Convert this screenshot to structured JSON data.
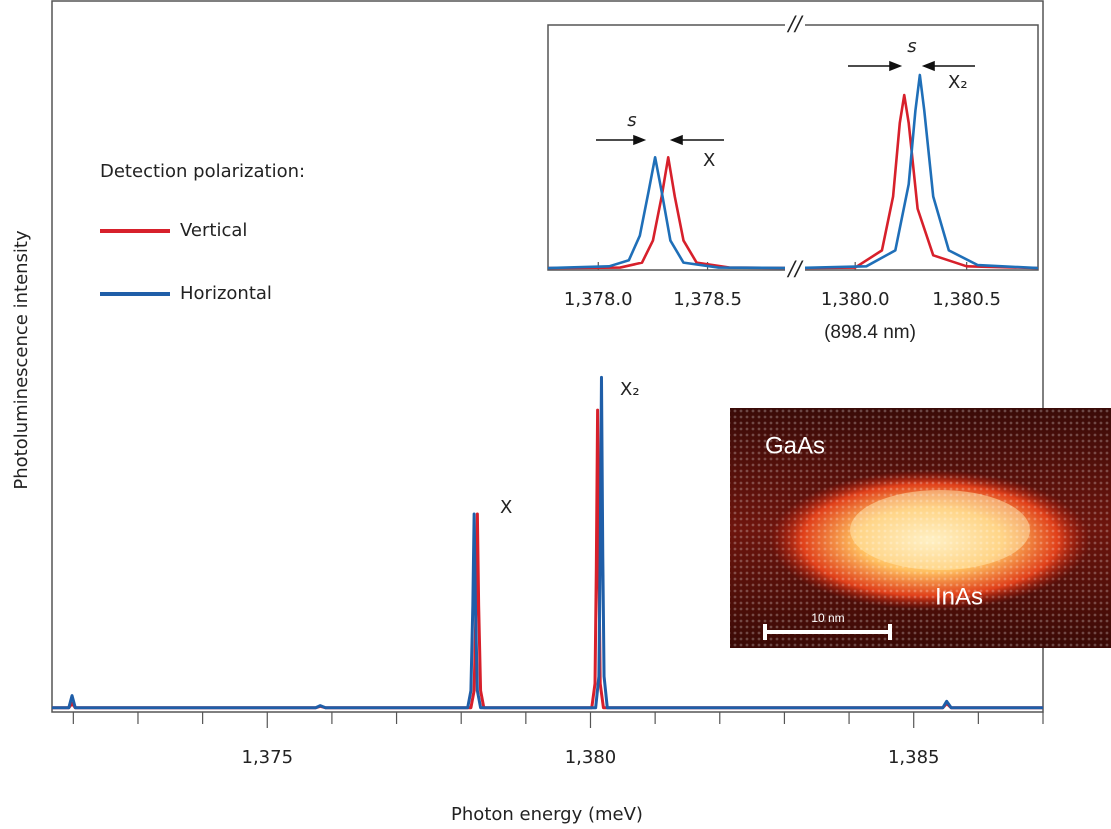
{
  "chart_data": [
    {
      "type": "line",
      "x_label": "Photon energy (meV)",
      "y_label": "Photoluminescence intensity",
      "xlim": [
        1371.67,
        1387.0
      ],
      "xticks": [
        {
          "value": 1372,
          "label": null
        },
        {
          "value": 1373,
          "label": null
        },
        {
          "value": 1374,
          "label": null
        },
        {
          "value": 1375,
          "label": "1,375"
        },
        {
          "value": 1376,
          "label": null
        },
        {
          "value": 1377,
          "label": null
        },
        {
          "value": 1378,
          "label": null
        },
        {
          "value": 1379,
          "label": null
        },
        {
          "value": 1380,
          "label": "1,380"
        },
        {
          "value": 1381,
          "label": null
        },
        {
          "value": 1382,
          "label": null
        },
        {
          "value": 1383,
          "label": null
        },
        {
          "value": 1384,
          "label": null
        },
        {
          "value": 1385,
          "label": "1,385"
        },
        {
          "value": 1386,
          "label": null
        },
        {
          "value": 1387,
          "label": null
        }
      ],
      "ylim": [
        0,
        100
      ],
      "legend": {
        "title": "Detection polarization:",
        "position": "upper left"
      },
      "annotations": [
        "X",
        "X₂"
      ],
      "series": [
        {
          "name": "Vertical",
          "color": "#d7202b",
          "x": [
            1371.67,
            1371.93,
            1371.98,
            1372.03,
            1375.75,
            1375.82,
            1375.9,
            1378.15,
            1378.2,
            1378.23,
            1378.25,
            1378.27,
            1378.3,
            1378.35,
            1380.02,
            1380.07,
            1380.09,
            1380.11,
            1380.13,
            1380.15,
            1380.2,
            1385.45,
            1385.51,
            1385.58,
            1387.0
          ],
          "values": [
            0.6,
            0.6,
            1.2,
            0.6,
            0.6,
            0.8,
            0.6,
            0.6,
            3,
            15,
            27.8,
            15,
            3,
            0.6,
            0.6,
            4,
            20,
            42.4,
            20,
            4,
            0.6,
            0.6,
            1.2,
            0.6,
            0.6
          ]
        },
        {
          "name": "Horizontal",
          "color": "#1f5ea8",
          "x": [
            1371.67,
            1371.93,
            1371.98,
            1372.03,
            1375.75,
            1375.82,
            1375.9,
            1378.1,
            1378.15,
            1378.18,
            1378.2,
            1378.22,
            1378.25,
            1378.3,
            1380.08,
            1380.13,
            1380.15,
            1380.17,
            1380.19,
            1380.21,
            1380.26,
            1385.45,
            1385.51,
            1385.58,
            1387.0
          ],
          "values": [
            0.6,
            0.6,
            2.3,
            0.6,
            0.6,
            0.9,
            0.6,
            0.6,
            3,
            15,
            27.8,
            15,
            3,
            0.6,
            0.6,
            5,
            22,
            47,
            22,
            5,
            0.6,
            0.6,
            1.5,
            0.6,
            0.6
          ]
        }
      ]
    },
    {
      "type": "line",
      "segments": [
        {
          "xlim": [
            1377.77,
            1378.9
          ],
          "xticks": [
            {
              "value": 1378.0,
              "label": "1,378.0"
            },
            {
              "value": 1378.5,
              "label": "1,378.5"
            }
          ]
        },
        {
          "xlim": [
            1379.73,
            1380.82
          ],
          "xticks": [
            {
              "value": 1380.0,
              "label": "1,380.0"
            },
            {
              "value": 1380.5,
              "label": "1,380.5"
            }
          ]
        }
      ],
      "x_note": "(898.4 nm)",
      "ylim": [
        0,
        100
      ],
      "annotations": [
        "s",
        "X",
        "s",
        "X₂"
      ],
      "series": [
        {
          "color": "#d7202b",
          "x": [
            1377.77,
            1378.1,
            1378.2,
            1378.25,
            1378.29,
            1378.32,
            1378.35,
            1378.39,
            1378.45,
            1378.6,
            1378.9,
            1379.3,
            1379.73,
            1380.0,
            1380.12,
            1380.17,
            1380.2,
            1380.22,
            1380.24,
            1380.28,
            1380.35,
            1380.5,
            1380.82
          ],
          "values": [
            0.8,
            1,
            3,
            12,
            30,
            46,
            30,
            12,
            3,
            1,
            0.8,
            null,
            0.8,
            1,
            8,
            30,
            60,
            71.4,
            60,
            25,
            6,
            1.5,
            0.8
          ]
        },
        {
          "color": "#1f6fb8",
          "x": [
            1377.77,
            1378.05,
            1378.14,
            1378.19,
            1378.23,
            1378.26,
            1378.29,
            1378.33,
            1378.39,
            1378.55,
            1378.9,
            1379.3,
            1379.73,
            1380.05,
            1380.18,
            1380.24,
            1380.27,
            1380.29,
            1380.31,
            1380.35,
            1380.42,
            1380.55,
            1380.82
          ],
          "values": [
            0.8,
            1.5,
            4,
            14,
            32,
            46,
            32,
            12,
            3,
            1,
            0.8,
            null,
            0.8,
            1.5,
            8,
            35,
            65,
            79.6,
            65,
            30,
            8,
            2,
            0.8
          ]
        }
      ]
    }
  ],
  "inset_image": {
    "matrix_label": "GaAs",
    "dot_label": "InAs",
    "scale_bar_label": "10 nm"
  }
}
